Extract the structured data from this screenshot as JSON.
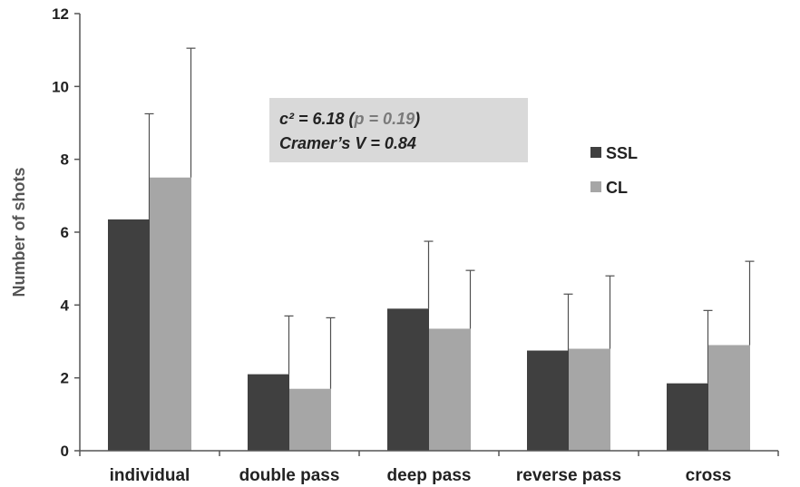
{
  "chart_data": {
    "type": "bar",
    "title": "",
    "xlabel": "",
    "ylabel": "Number of shots",
    "ylim": [
      0,
      12
    ],
    "yticks": [
      "0",
      "2",
      "4",
      "6",
      "8",
      "10",
      "12"
    ],
    "grid": false,
    "legend_position": "right",
    "categories": [
      "individual",
      "double pass",
      "deep pass",
      "reverse pass",
      "cross"
    ],
    "series": [
      {
        "name": "SSL",
        "color": "#404040",
        "values": [
          6.35,
          2.1,
          3.9,
          2.75,
          1.85
        ],
        "error": [
          2.9,
          1.6,
          1.85,
          1.55,
          2.0
        ]
      },
      {
        "name": "CL",
        "color": "#a6a6a6",
        "values": [
          7.5,
          1.7,
          3.35,
          2.8,
          2.9
        ],
        "error": [
          3.55,
          1.95,
          1.6,
          2.0,
          2.3
        ]
      }
    ],
    "annotation": {
      "line1_main": "c² = 6.18 (",
      "line1_p": "p = 0.19",
      "line1_close": ")",
      "line2": "Cramer’s V = 0.84",
      "box_color": "#d9d9d9"
    }
  }
}
